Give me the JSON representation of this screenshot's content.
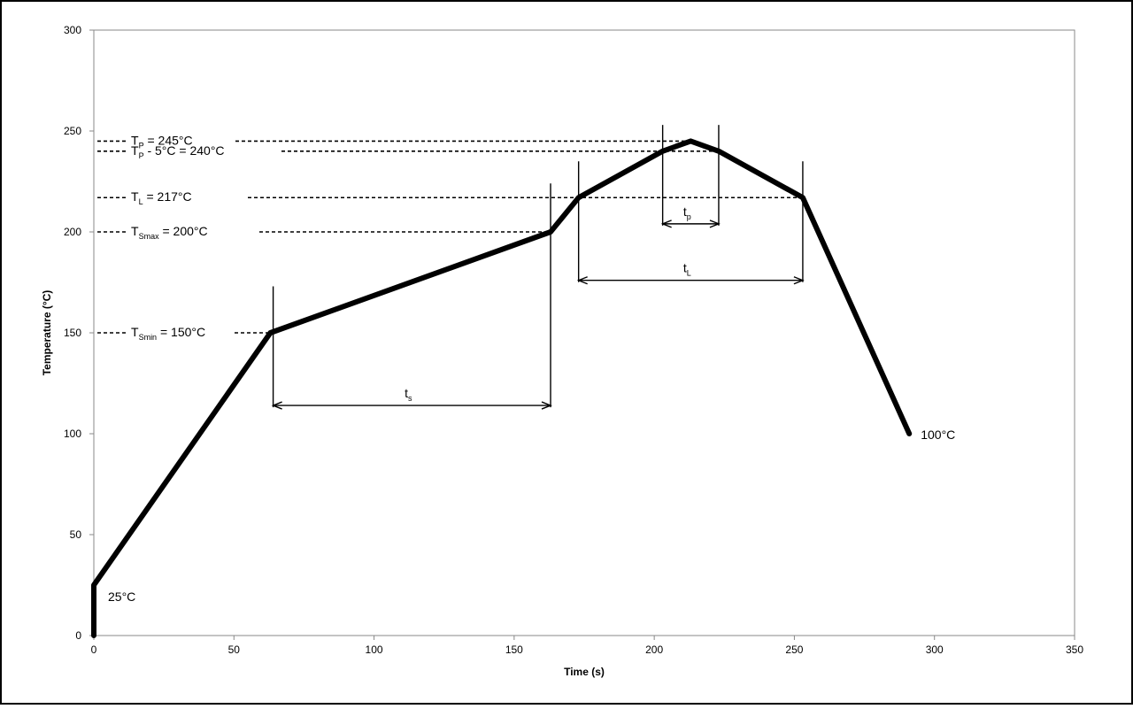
{
  "chart_data": {
    "type": "line",
    "xlabel": "Time (s)",
    "ylabel": "Temperature (°C)",
    "xlim": [
      0,
      350
    ],
    "ylim": [
      0,
      300
    ],
    "x_ticks": [
      "0",
      "50",
      "100",
      "150",
      "200",
      "250",
      "300",
      "350"
    ],
    "y_ticks": [
      "0",
      "50",
      "100",
      "150",
      "200",
      "250",
      "300"
    ],
    "grid": false,
    "series": [
      {
        "x": [
          0,
          0,
          63,
          163,
          173,
          203,
          213,
          223,
          253,
          291
        ],
        "y": [
          0,
          25,
          150,
          200,
          217,
          240,
          245,
          240,
          217,
          100
        ]
      }
    ],
    "point_labels": {
      "start": "25°C",
      "end": "100°C"
    },
    "reference_lines": [
      {
        "id": "tp",
        "y": 245,
        "label_main": "T",
        "label_sub": "P",
        "label_rest": " = 245°C",
        "x_end": 213
      },
      {
        "id": "tp5",
        "y": 240,
        "label_main": "T",
        "label_sub": "P",
        "label_rest": " - 5°C = 240°C",
        "x_end": 223
      },
      {
        "id": "tl",
        "y": 217,
        "label_main": "T",
        "label_sub": "L",
        "label_rest": " = 217°C",
        "x_end": 253
      },
      {
        "id": "tsmax",
        "y": 200,
        "label_main": "T",
        "label_sub": "Smax",
        "label_rest": " = 200°C",
        "x_end": 163
      },
      {
        "id": "tsmin",
        "y": 150,
        "label_main": "T",
        "label_sub": "Smin",
        "label_rest": " = 150°C",
        "x_end": 63
      }
    ],
    "intervals": [
      {
        "id": "ts",
        "x_start": 64,
        "x_end": 163,
        "y": 114,
        "y_top_start": 173,
        "y_top_end": 224,
        "label_main": "t",
        "label_sub": "s"
      },
      {
        "id": "tl",
        "x_start": 173,
        "x_end": 253,
        "y": 176,
        "y_top_start": 235,
        "y_top_end": 235,
        "label_main": "t",
        "label_sub": "L"
      },
      {
        "id": "tp",
        "x_start": 203,
        "x_end": 223,
        "y": 204,
        "y_top_start": 253,
        "y_top_end": 253,
        "label_main": "t",
        "label_sub": "p"
      }
    ]
  }
}
